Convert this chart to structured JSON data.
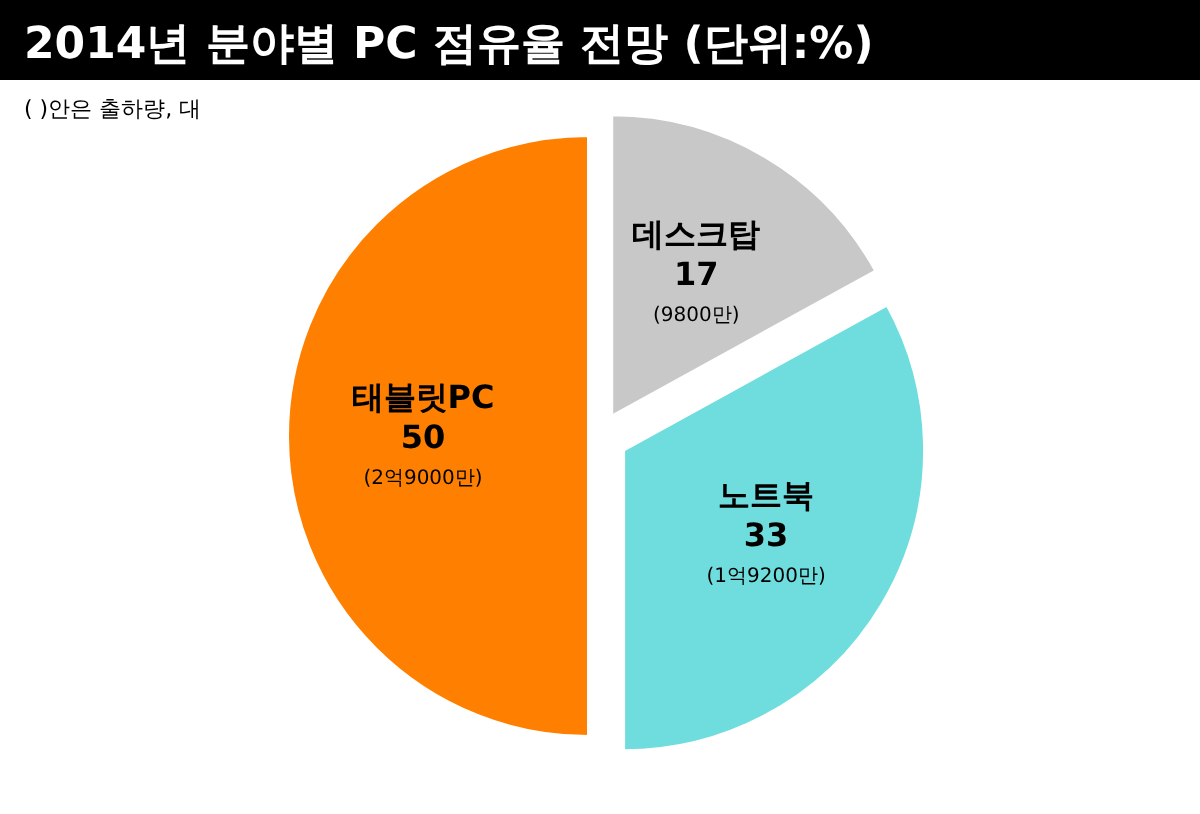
{
  "chart_data": {
    "type": "pie",
    "title": "2014년 분야별 PC 점유율 전망 (단위:%)",
    "subtitle": "( )안은 출하량, 대",
    "categories": [
      "데스크탑",
      "노트북",
      "태블릿PC"
    ],
    "values": [
      17,
      33,
      50
    ],
    "colors": [
      "#c8c8c8",
      "#6fdddd",
      "#ff8000"
    ],
    "data_labels": true,
    "annotations": [
      {
        "text": "(9800만)",
        "x": "데스크탑"
      },
      {
        "text": "(1억9200만)",
        "x": "노트북"
      },
      {
        "text": "(2억9000만)",
        "x": "태블릿PC"
      }
    ]
  }
}
